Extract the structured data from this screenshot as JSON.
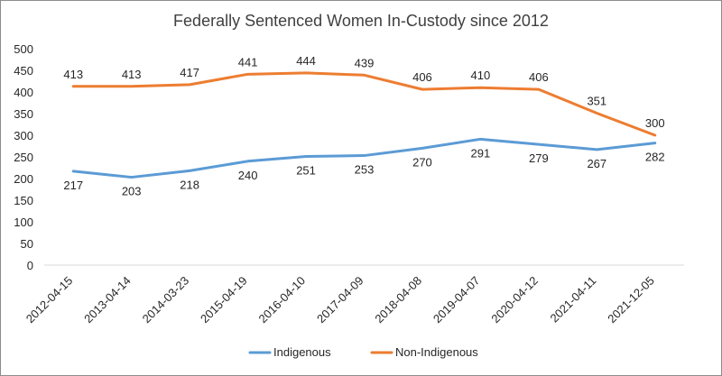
{
  "chart_data": {
    "type": "line",
    "title": "Federally Sentenced Women In-Custody since 2012",
    "categories": [
      "2012-04-15",
      "2013-04-14",
      "2014-03-23",
      "2015-04-19",
      "2016-04-10",
      "2017-04-09",
      "2018-04-08",
      "2019-04-07",
      "2020-04-12",
      "2021-04-11",
      "2021-12-05"
    ],
    "y_ticks": [
      0,
      50,
      100,
      150,
      200,
      250,
      300,
      350,
      400,
      450,
      500
    ],
    "ylim": [
      0,
      500
    ],
    "legend_position": "bottom",
    "gridlines": false,
    "series": [
      {
        "name": "Indigenous",
        "color": "#5b9bd5",
        "values": [
          217,
          203,
          218,
          240,
          251,
          253,
          270,
          291,
          279,
          267,
          282
        ]
      },
      {
        "name": "Non-Indigenous",
        "color": "#ed7d31",
        "values": [
          413,
          413,
          417,
          441,
          444,
          439,
          406,
          410,
          406,
          351,
          300
        ]
      }
    ]
  }
}
